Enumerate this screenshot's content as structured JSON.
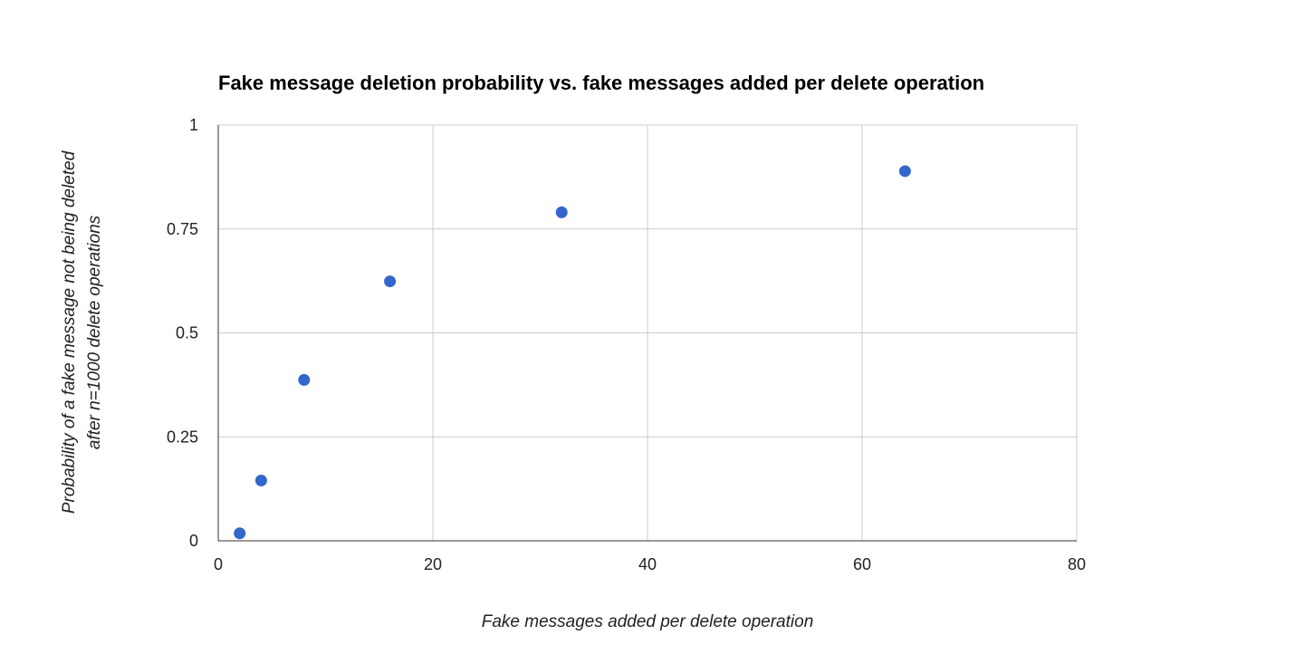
{
  "chart_data": {
    "type": "scatter",
    "title": "Fake message deletion probability vs. fake messages added per delete operation",
    "xlabel": "Fake messages added per delete operation",
    "ylabel_lines": [
      "Probability of a fake message not being deleted",
      "after n=1000 delete operations"
    ],
    "xlim": [
      0,
      80
    ],
    "ylim": [
      0,
      1
    ],
    "x_ticks": [
      0,
      20,
      40,
      60,
      80
    ],
    "y_ticks": [
      0,
      0.25,
      0.5,
      0.75,
      1
    ],
    "x_tick_labels": [
      "0",
      "20",
      "40",
      "60",
      "80"
    ],
    "y_tick_labels": [
      "0",
      "0.25",
      "0.5",
      "0.75",
      "1"
    ],
    "grid": true,
    "legend": "none",
    "point_color": "#3366cc",
    "series": [
      {
        "x": [
          2,
          4,
          8,
          16,
          32,
          64
        ],
        "y": [
          0.018,
          0.145,
          0.387,
          0.624,
          0.79,
          0.889
        ]
      }
    ]
  }
}
